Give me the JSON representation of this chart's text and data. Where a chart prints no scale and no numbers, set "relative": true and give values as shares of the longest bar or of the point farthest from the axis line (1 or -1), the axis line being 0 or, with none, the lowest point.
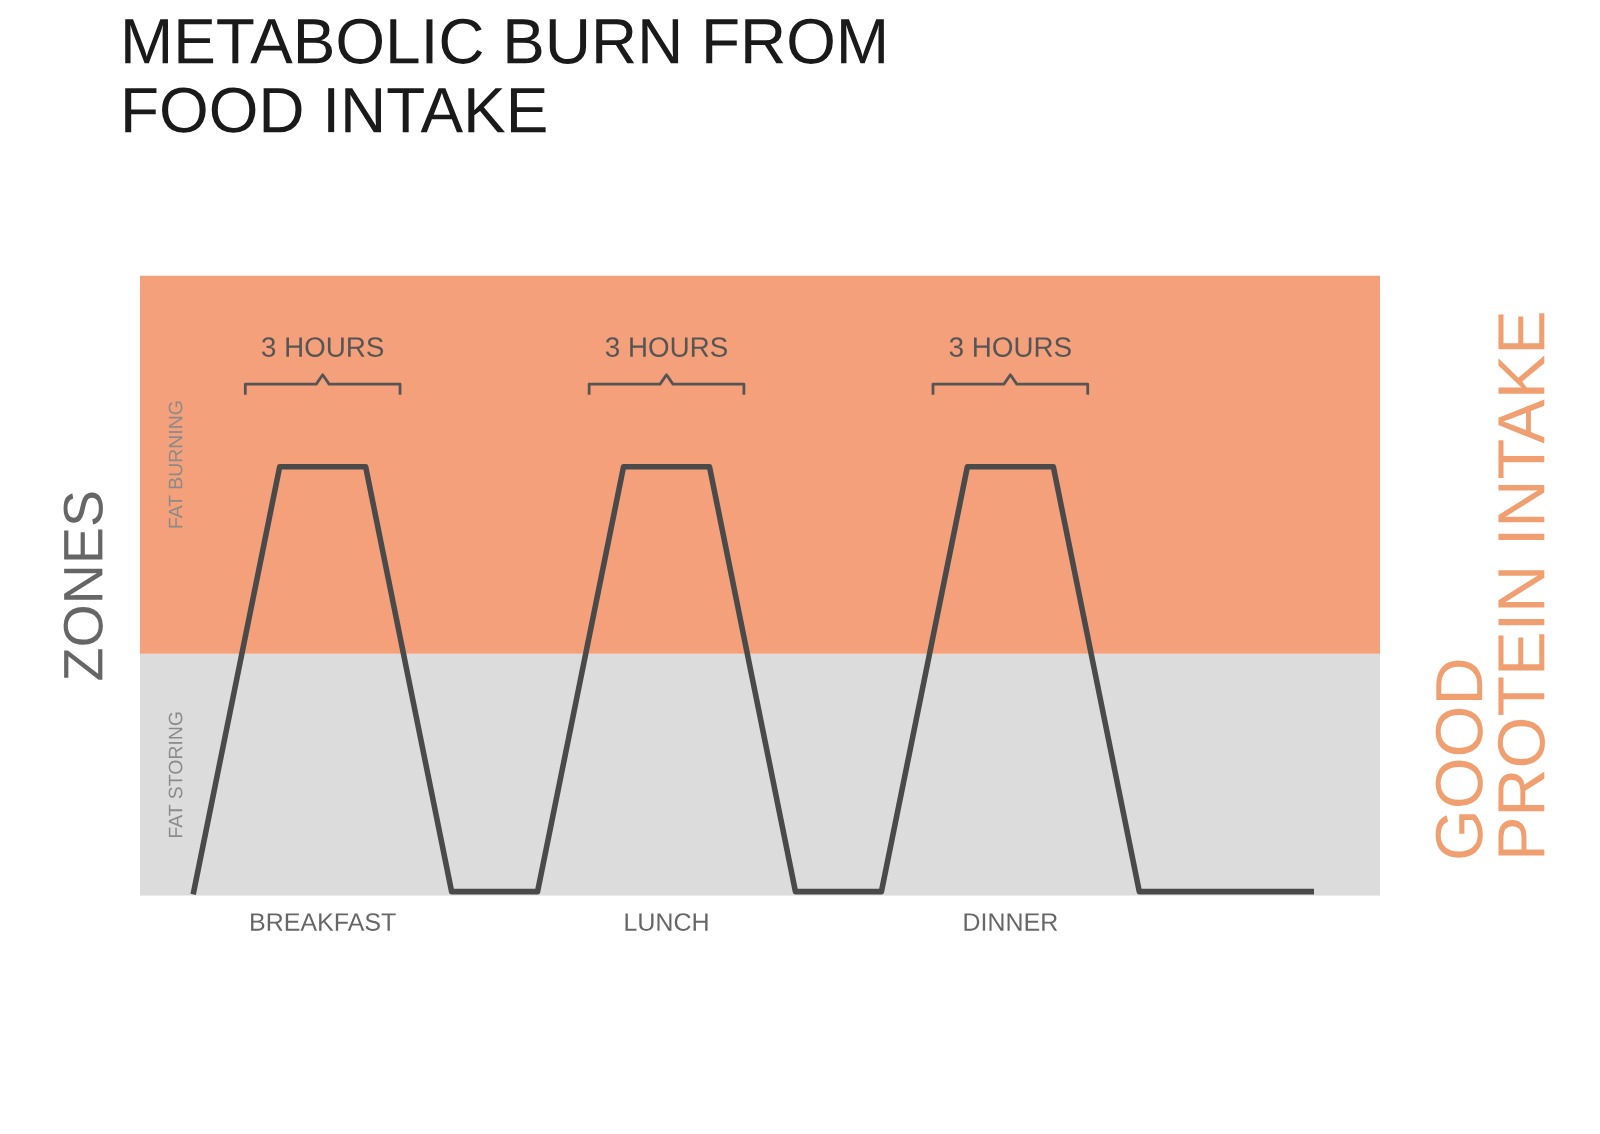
{
  "chart_data": {
    "type": "line",
    "title": "METABOLIC BURN FROM\nFOOD INTAKE",
    "ylabel": "ZONES",
    "relative": true,
    "categories": [
      null,
      null,
      null,
      "BREAKFAST",
      null,
      null,
      null,
      null,
      null,
      null,
      null,
      "LUNCH",
      null,
      null,
      null,
      null,
      null,
      null,
      null,
      "DINNER",
      null,
      null,
      null,
      null,
      null,
      null,
      null
    ],
    "series": [
      {
        "color": "#4a4a4a",
        "values": [
          0,
          0.5,
          1,
          1,
          1,
          0.5,
          0,
          0,
          0,
          0.5,
          1,
          1,
          1,
          0.5,
          0,
          0,
          0,
          0.5,
          1,
          1,
          1,
          0.5,
          0,
          0,
          0,
          0,
          0
        ]
      }
    ],
    "bands": [
      {
        "axis": "y",
        "from": -0.01,
        "to": 0.56,
        "label": "FAT STORING",
        "color": "#dcdcdc"
      },
      {
        "axis": "y",
        "from": 0.56,
        "to": 1.45,
        "label": "FAT BURNING",
        "color": "#f4a07a"
      }
    ],
    "annotations": [
      "3 HOURS",
      "3 HOURS",
      "3 HOURS",
      "GOOD\nPROTEIN INTAKE"
    ]
  }
}
